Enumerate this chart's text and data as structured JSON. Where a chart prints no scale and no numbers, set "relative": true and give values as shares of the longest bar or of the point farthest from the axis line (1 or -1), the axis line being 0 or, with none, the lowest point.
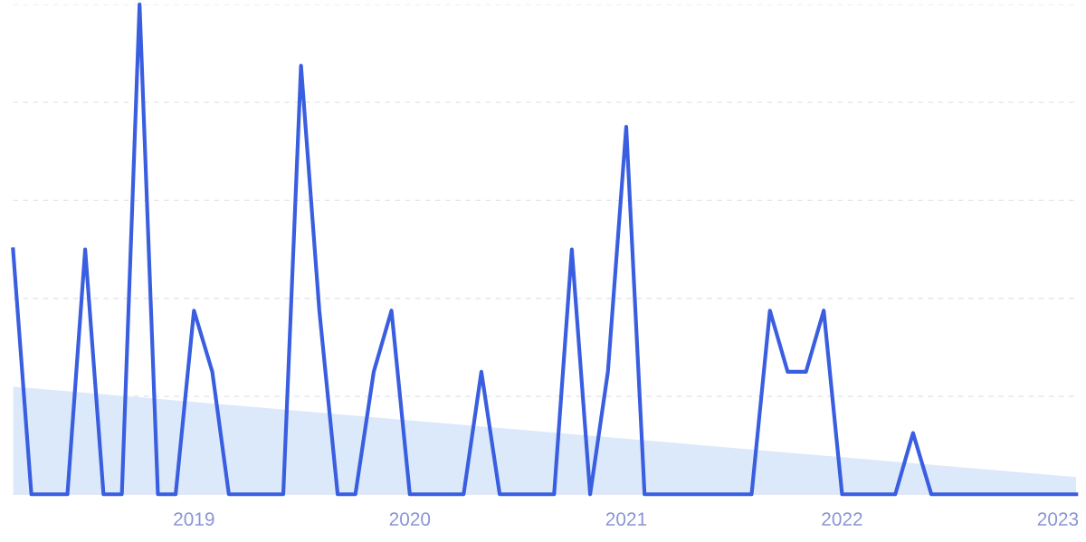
{
  "chart_data": {
    "type": "line",
    "relative": true,
    "grid": "y",
    "line_style": "solid",
    "marker": "none",
    "x": [
      "2018-03",
      "2018-04",
      "2018-05",
      "2018-06",
      "2018-07",
      "2018-08",
      "2018-09",
      "2018-10",
      "2018-11",
      "2018-12",
      "2019-01",
      "2019-02",
      "2019-03",
      "2019-04",
      "2019-05",
      "2019-06",
      "2019-07",
      "2019-08",
      "2019-09",
      "2019-10",
      "2019-11",
      "2019-12",
      "2020-01",
      "2020-02",
      "2020-03",
      "2020-04",
      "2020-05",
      "2020-06",
      "2020-07",
      "2020-08",
      "2020-09",
      "2020-10",
      "2020-11",
      "2020-12",
      "2021-01",
      "2021-02",
      "2021-03",
      "2021-04",
      "2021-05",
      "2021-06",
      "2021-07",
      "2021-08",
      "2021-09",
      "2021-10",
      "2021-11",
      "2021-12",
      "2022-01",
      "2022-02",
      "2022-03",
      "2022-04",
      "2022-05",
      "2022-06",
      "2022-07",
      "2022-08",
      "2022-09",
      "2022-10",
      "2022-11",
      "2022-12",
      "2023-01",
      "2023-02"
    ],
    "xlim": [
      "2018-03",
      "2023-02"
    ],
    "xticks": [
      {
        "value": "2019-01",
        "label": "2019"
      },
      {
        "value": "2020-01",
        "label": "2020"
      },
      {
        "value": "2021-01",
        "label": "2021"
      },
      {
        "value": "2022-01",
        "label": "2022"
      },
      {
        "value": "2023-01",
        "label": "2023"
      }
    ],
    "series": [
      {
        "type": "area",
        "color": "#dce9fa",
        "x": [
          "2018-03",
          "2023-02"
        ],
        "values": [
          0.22,
          0.035
        ]
      },
      {
        "color": "#3a5ee0",
        "values": [
          0.5,
          0,
          0,
          0,
          0.5,
          0,
          0,
          1,
          0,
          0,
          0.375,
          0.25,
          0,
          0,
          0,
          0,
          0.875,
          0.375,
          0,
          0,
          0.25,
          0.375,
          0,
          0,
          0,
          0,
          0.25,
          0,
          0,
          0,
          0,
          0.5,
          0,
          0.25,
          0.75,
          0,
          0,
          0,
          0,
          0,
          0,
          0,
          0.375,
          0.25,
          0.25,
          0.375,
          0,
          0,
          0,
          0,
          0.125,
          0,
          0,
          0,
          0,
          0,
          0,
          0,
          0,
          0
        ]
      }
    ]
  }
}
